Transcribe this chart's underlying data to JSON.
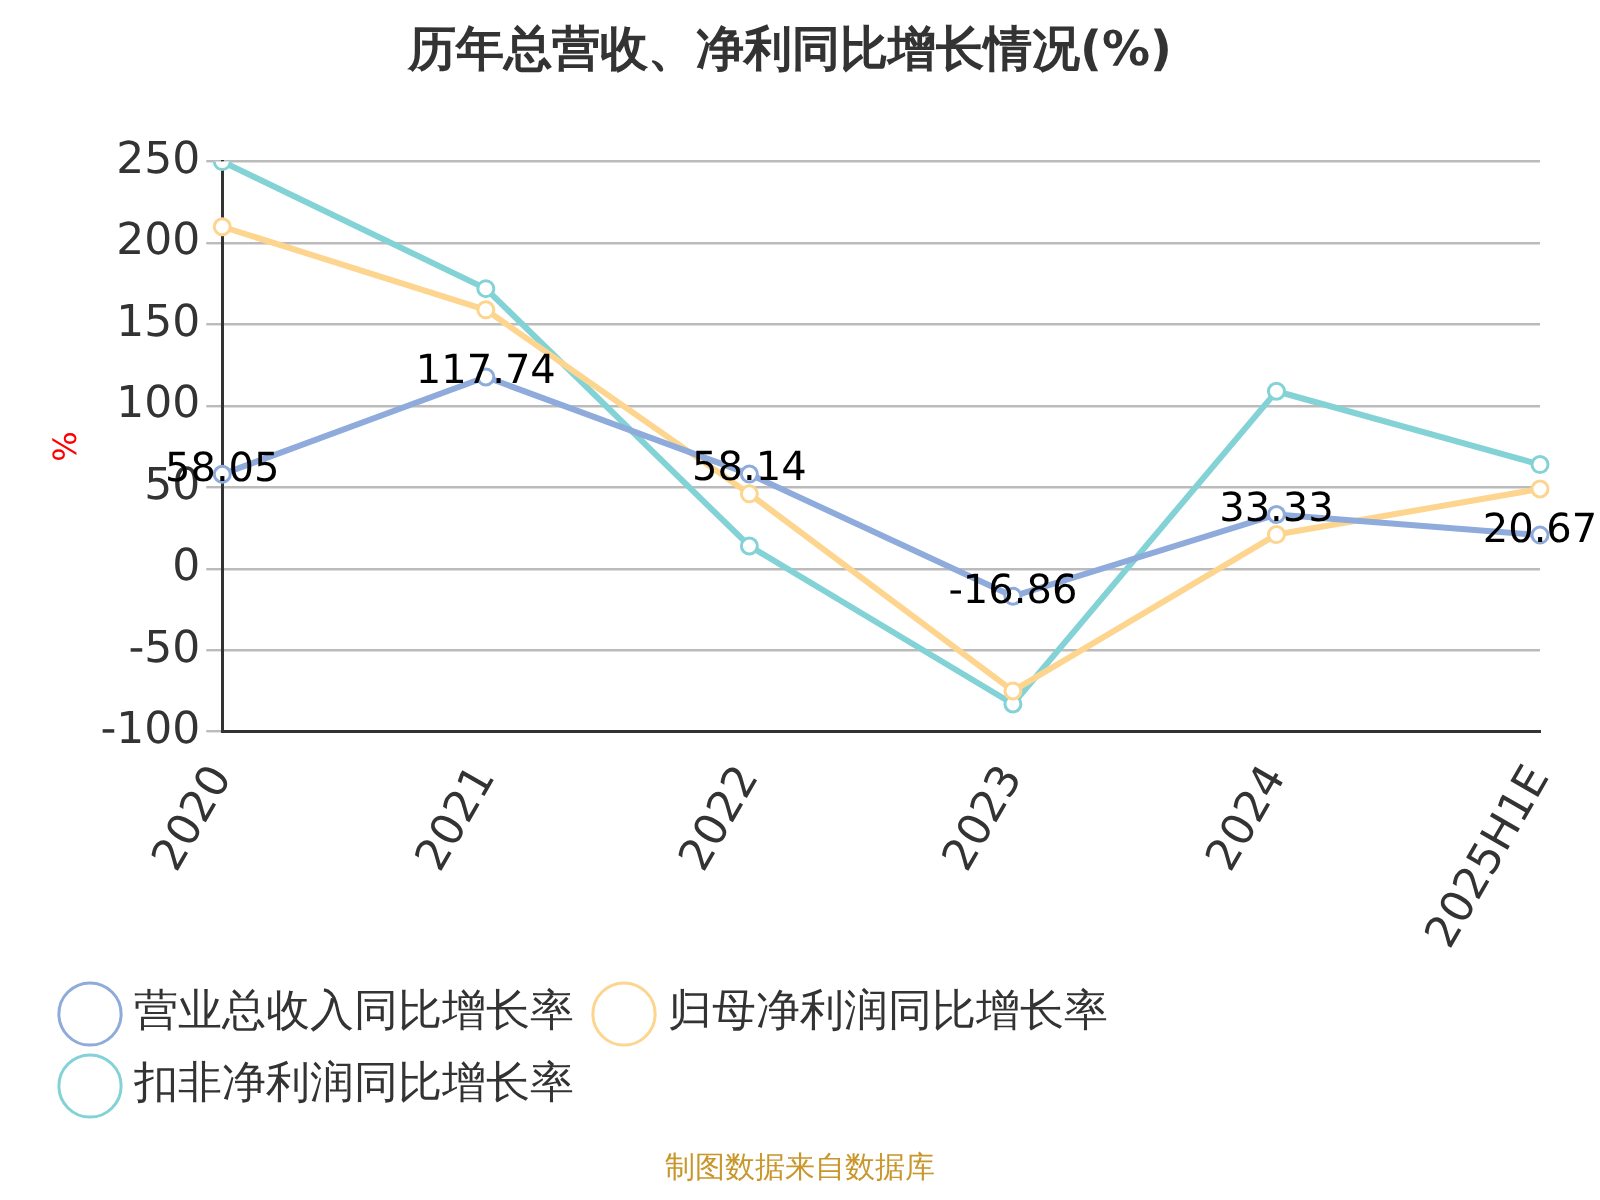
{
  "chart_data": {
    "type": "line",
    "title": "历年总营收、净利同比增长情况(%)",
    "ylabel": "%",
    "categories": [
      "2020",
      "2021",
      "2022",
      "2023",
      "2024",
      "2025H1E"
    ],
    "series": [
      {
        "name": "营业总收入同比增长率",
        "color": "#8eabdc",
        "values": [
          58.05,
          117.74,
          58.14,
          -16.86,
          33.33,
          20.67
        ],
        "value_labels": [
          "58.05",
          "117.74",
          "58.14",
          "-16.86",
          "33.33",
          "20.67"
        ]
      },
      {
        "name": "归母净利润同比增长率",
        "color": "#fdd58f",
        "values": [
          210,
          159,
          46,
          -75,
          21,
          49
        ]
      },
      {
        "name": "扣非净利润同比增长率",
        "color": "#83d3d6",
        "values": [
          250,
          172,
          14,
          -83,
          109,
          64
        ]
      }
    ],
    "ylim": [
      -100,
      250
    ],
    "yticks": [
      -100,
      -50,
      0,
      50,
      100,
      150,
      200,
      250
    ],
    "grid": "y",
    "legend": "bottom",
    "marker": "circle",
    "line_style": "solid",
    "annotations": [
      "制图数据来自数据库"
    ]
  }
}
